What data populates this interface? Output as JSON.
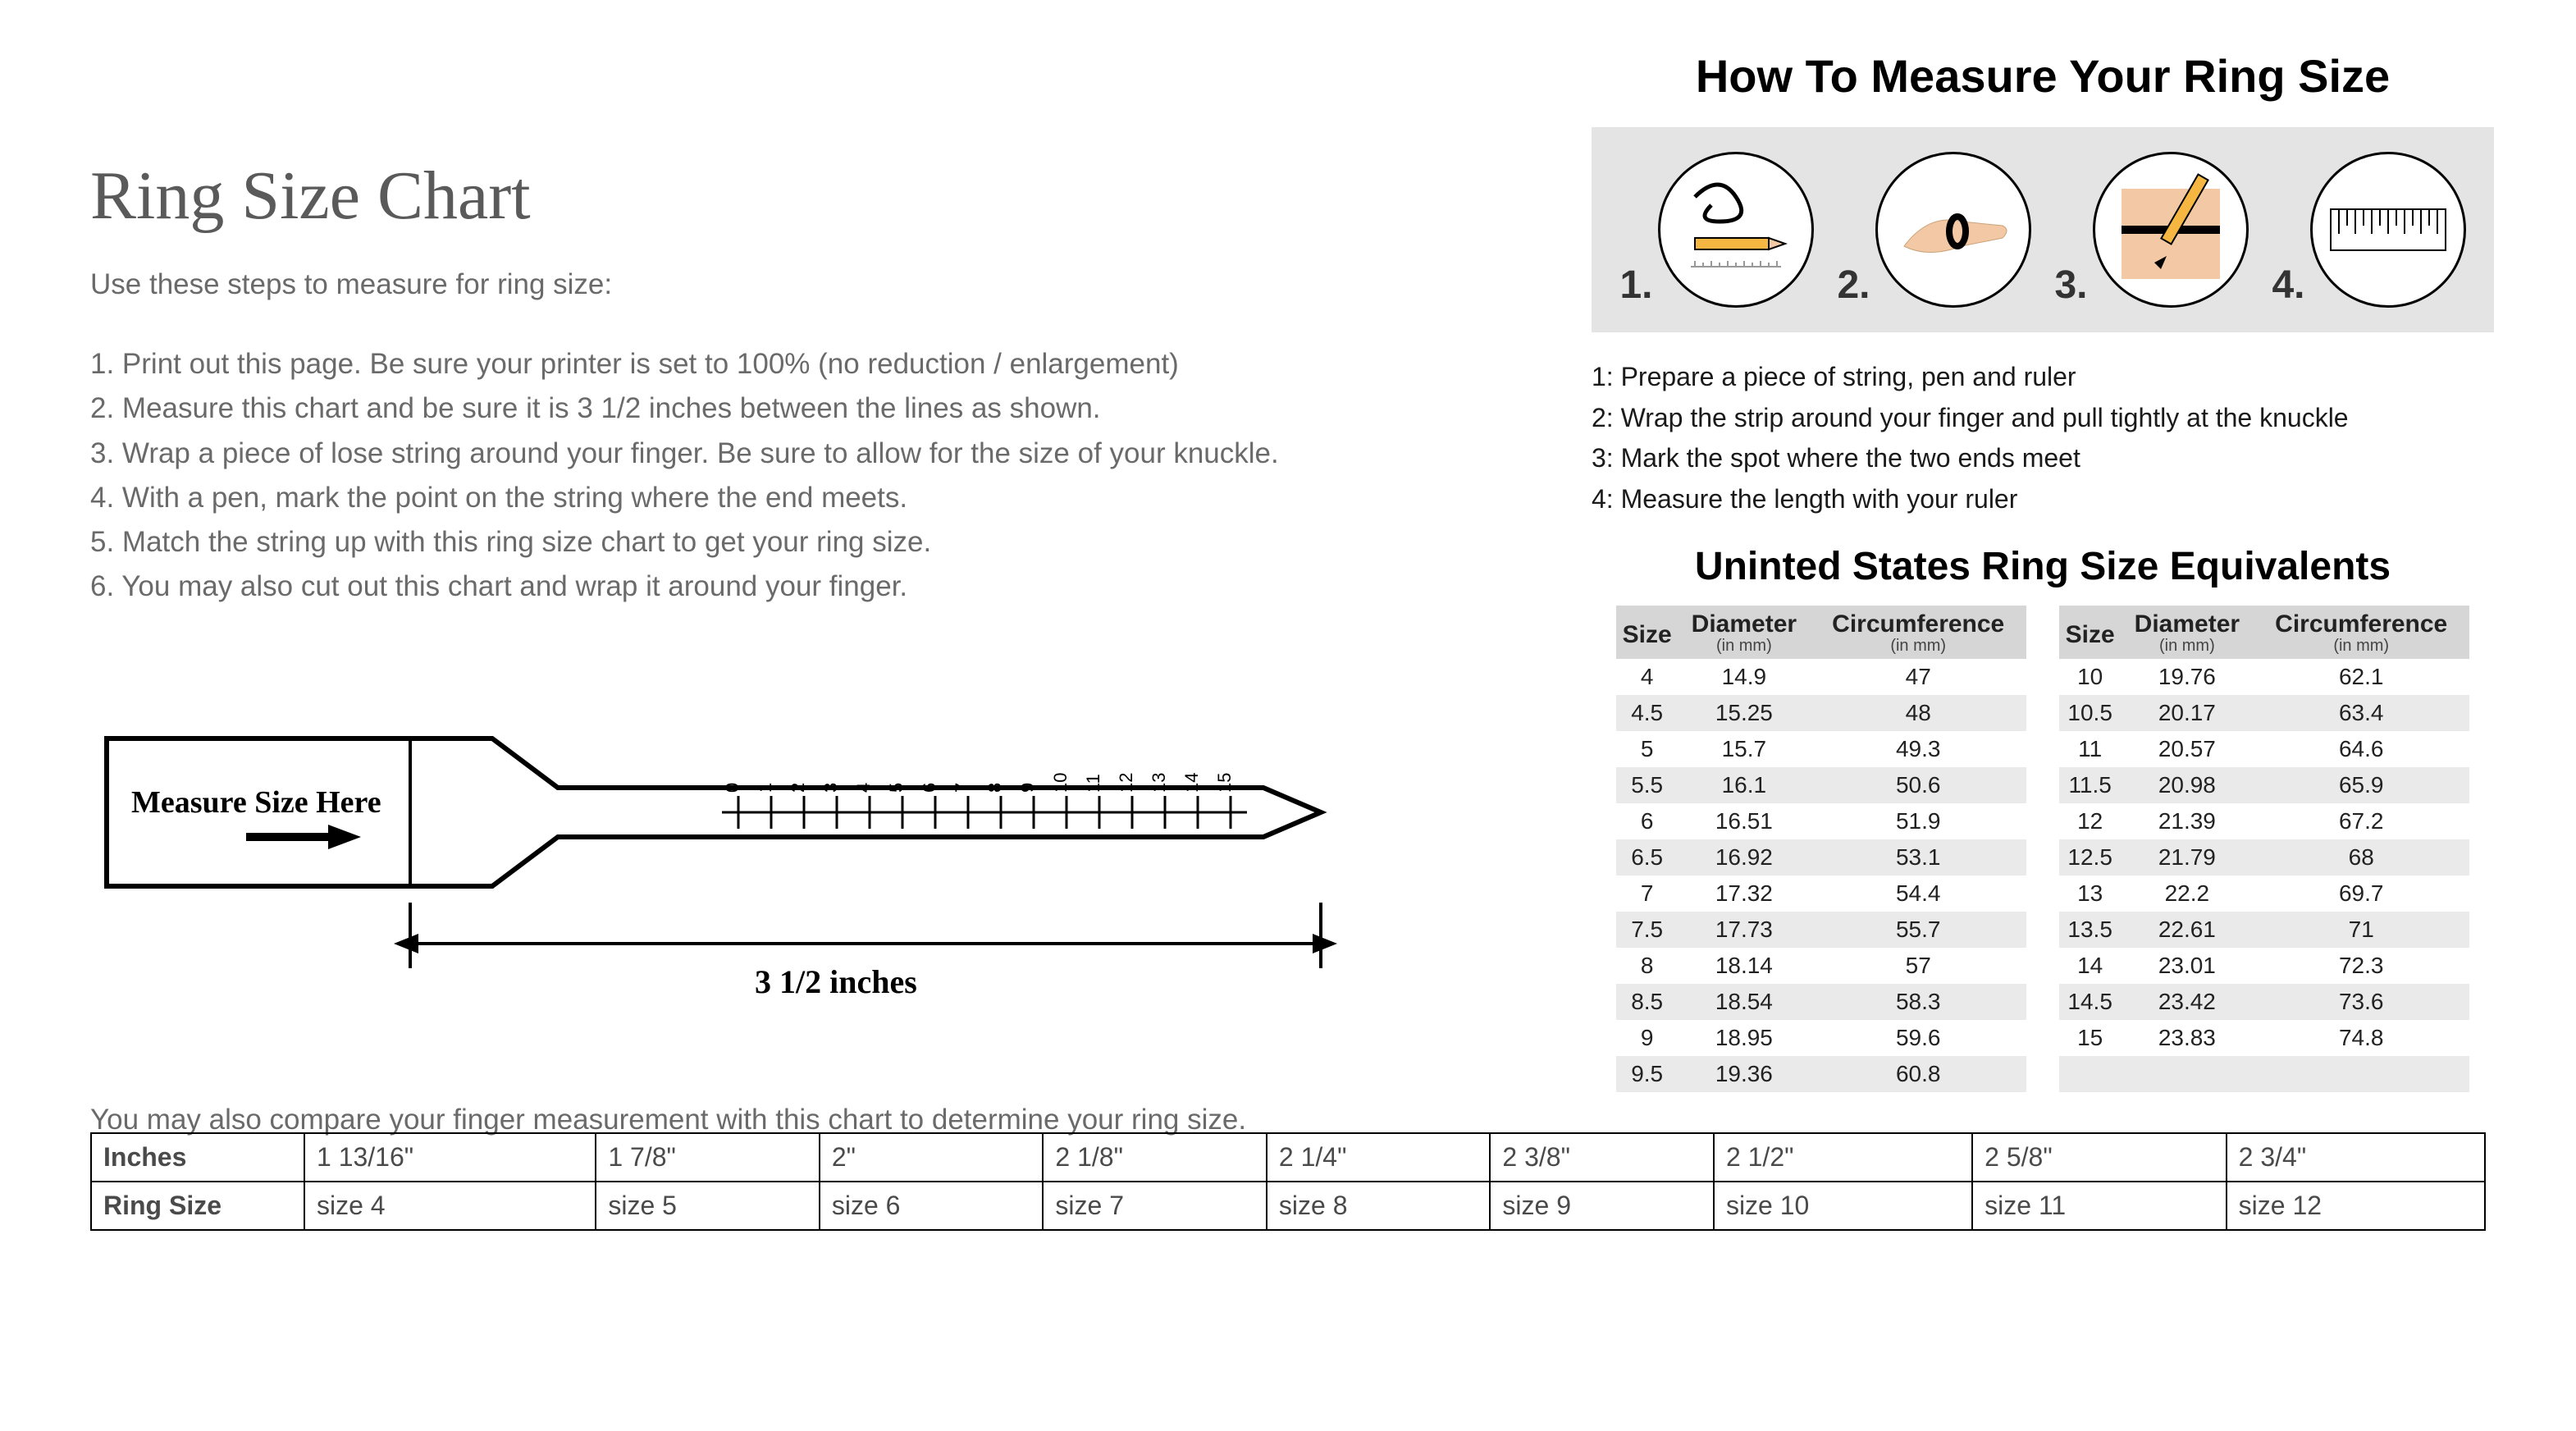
{
  "left": {
    "title": "Ring Size Chart",
    "intro": "Use these steps to measure for ring size:",
    "steps": [
      "1. Print out this page. Be sure your printer is set to 100% (no reduction / enlargement)",
      "2. Measure this chart and be sure it is 3 1/2 inches between the lines as shown.",
      "3. Wrap a piece of lose string around your finger. Be sure to allow for the size of your knuckle.",
      "4. With a pen, mark the point on the string where the end meets.",
      "5. Match the string up with this ring size chart to get your ring size.",
      "6. You may also cut out this chart and wrap it around your finger."
    ],
    "ruler": {
      "label": "Measure Size Here",
      "dimension_label": "3 1/2 inches",
      "ticks": [
        "0",
        "1",
        "2",
        "3",
        "4",
        "5",
        "6",
        "7",
        "8",
        "9",
        "10",
        "11",
        "12",
        "13",
        "14",
        "15"
      ]
    },
    "compare_text": "You may also compare your finger measurement with this chart to determine your ring size."
  },
  "bottom_table": {
    "row_labels": [
      "Inches",
      "Ring Size"
    ],
    "inches": [
      "1 13/16\"",
      "1 7/8\"",
      "2\"",
      "2 1/8\"",
      "2 1/4\"",
      "2 3/8\"",
      "2 1/2\"",
      "2 5/8\"",
      "2 3/4\""
    ],
    "ringsize": [
      "size 4",
      "size 5",
      "size 6",
      "size 7",
      "size 8",
      "size 9",
      "size 10",
      "size 11",
      "size 12"
    ]
  },
  "right": {
    "how_title": "How To Measure Your Ring Size",
    "how_steps_numbers": [
      "1.",
      "2.",
      "3.",
      "4."
    ],
    "how_list": [
      "1: Prepare a piece of string, pen and ruler",
      "2: Wrap the strip around your finger and pull tightly at the knuckle",
      "3: Mark the spot where the two ends meet",
      "4: Measure the length with your ruler"
    ],
    "equiv_title": "Uninted States Ring Size Equivalents",
    "columns": {
      "size": "Size",
      "diameter": "Diameter",
      "diameter_sub": "(in mm)",
      "circumference": "Circumference",
      "circumference_sub": "(in mm)"
    },
    "equiv_left": [
      {
        "size": "4",
        "d": "14.9",
        "c": "47"
      },
      {
        "size": "4.5",
        "d": "15.25",
        "c": "48"
      },
      {
        "size": "5",
        "d": "15.7",
        "c": "49.3"
      },
      {
        "size": "5.5",
        "d": "16.1",
        "c": "50.6"
      },
      {
        "size": "6",
        "d": "16.51",
        "c": "51.9"
      },
      {
        "size": "6.5",
        "d": "16.92",
        "c": "53.1"
      },
      {
        "size": "7",
        "d": "17.32",
        "c": "54.4"
      },
      {
        "size": "7.5",
        "d": "17.73",
        "c": "55.7"
      },
      {
        "size": "8",
        "d": "18.14",
        "c": "57"
      },
      {
        "size": "8.5",
        "d": "18.54",
        "c": "58.3"
      },
      {
        "size": "9",
        "d": "18.95",
        "c": "59.6"
      },
      {
        "size": "9.5",
        "d": "19.36",
        "c": "60.8"
      }
    ],
    "equiv_right": [
      {
        "size": "10",
        "d": "19.76",
        "c": "62.1"
      },
      {
        "size": "10.5",
        "d": "20.17",
        "c": "63.4"
      },
      {
        "size": "11",
        "d": "20.57",
        "c": "64.6"
      },
      {
        "size": "11.5",
        "d": "20.98",
        "c": "65.9"
      },
      {
        "size": "12",
        "d": "21.39",
        "c": "67.2"
      },
      {
        "size": "12.5",
        "d": "21.79",
        "c": "68"
      },
      {
        "size": "13",
        "d": "22.2",
        "c": "69.7"
      },
      {
        "size": "13.5",
        "d": "22.61",
        "c": "71"
      },
      {
        "size": "14",
        "d": "23.01",
        "c": "72.3"
      },
      {
        "size": "14.5",
        "d": "23.42",
        "c": "73.6"
      },
      {
        "size": "15",
        "d": "23.83",
        "c": "74.8"
      }
    ]
  },
  "colors": {
    "page_bg": "#ffffff",
    "strip_bg": "#e4e4e4",
    "table_header_bg": "#d6d6d6",
    "table_zebra_bg": "#eaeaea",
    "text_gray": "#6a6a6a",
    "pencil_yellow": "#f5b642",
    "skin": "#f3c9a5"
  }
}
